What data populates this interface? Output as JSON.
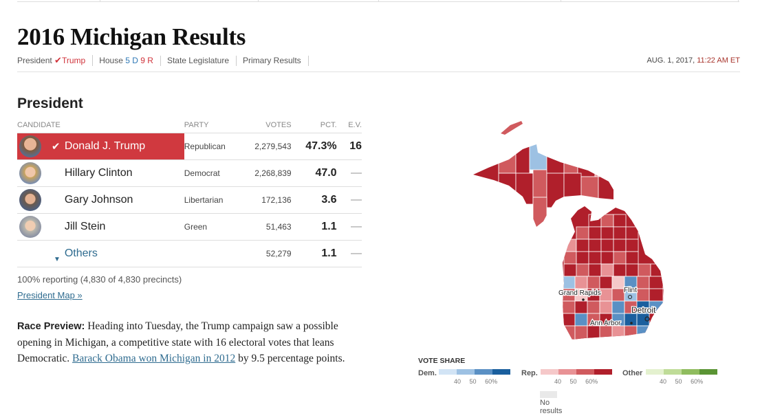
{
  "title": "2016 Michigan Results",
  "subnav": {
    "president_label": "President",
    "president_winner": "Trump",
    "house_label": "House",
    "house_dem": "5 D",
    "house_rep": "9 R",
    "state_legislature": "State Legislature",
    "primary_results": "Primary Results",
    "date": "AUG. 1, 2017,",
    "time": "11:22 AM ET"
  },
  "section_title": "President",
  "table": {
    "headers": [
      "Candidate",
      "Party",
      "Votes",
      "Pct.",
      "E.V."
    ],
    "rows": [
      {
        "name": "Donald J. Trump",
        "party": "Republican",
        "votes": "2,279,543",
        "pct": "47.3%",
        "ev": "16"
      },
      {
        "name": "Hillary Clinton",
        "party": "Democrat",
        "votes": "2,268,839",
        "pct": "47.0",
        "ev": "—"
      },
      {
        "name": "Gary Johnson",
        "party": "Libertarian",
        "votes": "172,136",
        "pct": "3.6",
        "ev": "—"
      },
      {
        "name": "Jill Stein",
        "party": "Green",
        "votes": "51,463",
        "pct": "1.1",
        "ev": "—"
      }
    ],
    "others": {
      "name": "Others",
      "votes": "52,279",
      "pct": "1.1",
      "ev": "—"
    }
  },
  "reporting": "100% reporting (4,830 of 4,830 precincts)",
  "map_link": "President Map »",
  "preview": {
    "label": "Race Preview:",
    "text_before": " Heading into Tuesday, the Trump campaign saw a possible opening in Michigan, a competitive state with 16 electoral votes that leans Democratic. ",
    "link": "Barack Obama won Michigan in 2012",
    "text_after": " by 9.5 percentage points."
  },
  "map": {
    "cities": {
      "grand_rapids": "Grand Rapids",
      "flint": "Flint",
      "detroit": "Detroit",
      "ann_arbor": "Ann Arbor"
    }
  },
  "legend": {
    "title": "VOTE SHARE",
    "dem": "Dem.",
    "rep": "Rep.",
    "other": "Other",
    "ticks": [
      "40",
      "50",
      "60%"
    ],
    "no_results": "No results",
    "dem_colors": [
      "#d2e4f5",
      "#9dc1e3",
      "#5a90c4",
      "#1a5f9e"
    ],
    "rep_colors": [
      "#f5c8c9",
      "#e89295",
      "#d05a5e",
      "#b01f2b"
    ],
    "other_colors": [
      "#e4f1cf",
      "#bfdc98",
      "#8fbc5e",
      "#5a9434"
    ]
  }
}
